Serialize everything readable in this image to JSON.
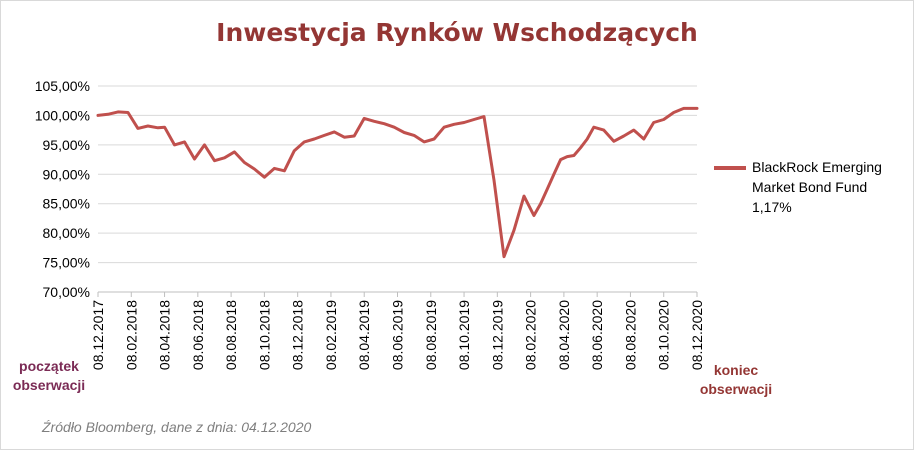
{
  "chart_data": {
    "type": "line",
    "title": "Inwestycja Rynków Wschodzących",
    "xlabel": "",
    "ylabel": "",
    "ylim": [
      70,
      105
    ],
    "y_ticks": [
      "70,00%",
      "75,00%",
      "80,00%",
      "85,00%",
      "90,00%",
      "95,00%",
      "100,00%",
      "105,00%"
    ],
    "x_ticks": [
      "08.12.2017",
      "08.02.2018",
      "08.04.2018",
      "08.06.2018",
      "08.08.2018",
      "08.10.2018",
      "08.12.2018",
      "08.02.2019",
      "08.04.2019",
      "08.06.2019",
      "08.08.2019",
      "08.10.2019",
      "08.12.2019",
      "08.02.2020",
      "08.04.2020",
      "08.06.2020",
      "08.08.2020",
      "08.10.2020",
      "08.12.2020"
    ],
    "grid": "horizontal",
    "legend_position": "right",
    "series": [
      {
        "name": "BlackRock Emerging Market Bond Fund",
        "legend_extra": "1,17%",
        "color": "#c0504d",
        "x": [
          0,
          0.3,
          0.6,
          0.9,
          1.2,
          1.5,
          1.8,
          2.0,
          2.3,
          2.6,
          2.9,
          3.2,
          3.5,
          3.8,
          4.1,
          4.4,
          4.7,
          5.0,
          5.3,
          5.6,
          5.9,
          6.2,
          6.5,
          6.8,
          7.1,
          7.4,
          7.7,
          8.0,
          8.3,
          8.6,
          8.9,
          9.2,
          9.5,
          9.8,
          10.1,
          10.4,
          10.7,
          11.0,
          11.3,
          11.6,
          11.9,
          12.2,
          12.5,
          12.8,
          13.1,
          13.3,
          13.5,
          13.7,
          13.9,
          14.1,
          14.3,
          14.5,
          14.7,
          14.9,
          15.2,
          15.5,
          15.8,
          16.1,
          16.4,
          16.7,
          17.0,
          17.3,
          17.6,
          17.9,
          18.0
        ],
        "y": [
          100.0,
          100.2,
          100.6,
          100.5,
          97.8,
          98.2,
          97.9,
          98.0,
          95.0,
          95.5,
          92.6,
          95.0,
          92.3,
          92.8,
          93.8,
          92.0,
          90.9,
          89.5,
          91.0,
          90.6,
          94.0,
          95.5,
          96.0,
          96.6,
          97.2,
          96.3,
          96.5,
          99.5,
          99.0,
          98.6,
          98.0,
          97.1,
          96.6,
          95.5,
          96.0,
          98.0,
          98.5,
          98.8,
          99.3,
          99.8,
          89.0,
          76.0,
          80.5,
          86.3,
          83.0,
          85.0,
          87.5,
          90.0,
          92.5,
          93.0,
          93.2,
          94.5,
          96.0,
          98.0,
          97.5,
          95.6,
          96.5,
          97.5,
          96.0,
          98.8,
          99.3,
          100.5,
          101.2,
          101.2,
          101.2
        ]
      }
    ]
  },
  "labels": {
    "legend_line1": "BlackRock Emerging",
    "legend_line2": "Market Bond Fund",
    "legend_value": "1,17%",
    "start_line1": "początek",
    "start_line2": "obserwacji",
    "end_line1": "koniec",
    "end_line2": "obserwacji",
    "source": "Źródło Bloomberg, dane z dnia: 04.12.2020"
  }
}
